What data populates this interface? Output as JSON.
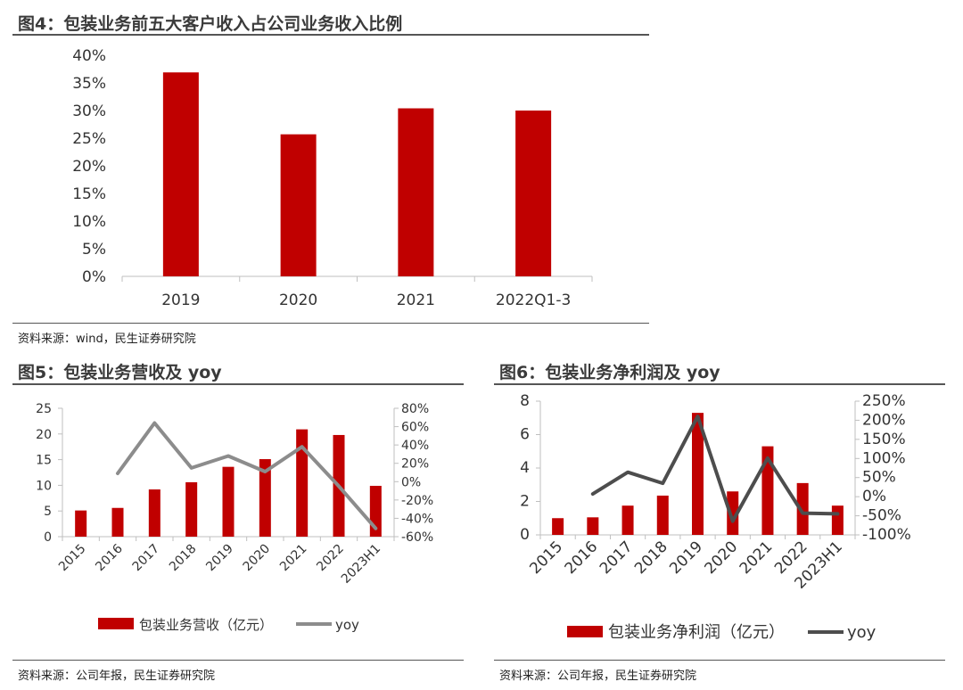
{
  "charts": [
    {
      "title": "图4：包装业务前五大客户收入占公司业务收入比例",
      "source": "资料来源：wind，民生证券研究院"
    },
    {
      "title": "图5：包装业务营收及 yoy",
      "source": "资料来源：公司年报，民生证券研究院",
      "legend_bar": "包装业务营收（亿元）",
      "legend_line": "yoy"
    },
    {
      "title": "图6：包装业务净利润及 yoy",
      "source": "资料来源：公司年报，民生证券研究院",
      "legend_bar": "包装业务净利润（亿元）",
      "legend_line": "yoy"
    }
  ],
  "colors": {
    "bar": "#c00000",
    "line5": "#8c8c8c",
    "line6": "#4d4d4d",
    "axis": "#bfbfbf"
  },
  "chart_data": [
    {
      "type": "bar",
      "categories": [
        "2019",
        "2020",
        "2021",
        "2022Q1-3"
      ],
      "values": [
        0.369,
        0.257,
        0.304,
        0.3
      ],
      "y_ticks": [
        "0%",
        "5%",
        "10%",
        "15%",
        "20%",
        "25%",
        "30%",
        "35%",
        "40%"
      ],
      "ylim": [
        0,
        0.4
      ],
      "grid": false,
      "legend": "none"
    },
    {
      "type": "bar+line",
      "categories": [
        "2015",
        "2016",
        "2017",
        "2018",
        "2019",
        "2020",
        "2021",
        "2022",
        "2023H1"
      ],
      "bar_values": [
        5.1,
        5.6,
        9.2,
        10.6,
        13.6,
        15.1,
        20.9,
        19.8,
        9.9
      ],
      "line_values": [
        null,
        0.09,
        0.64,
        0.15,
        0.28,
        0.11,
        0.38,
        -0.05,
        -0.51
      ],
      "y_left_ticks": [
        "0",
        "5",
        "10",
        "15",
        "20",
        "25"
      ],
      "ylim_left": [
        0,
        25
      ],
      "y_right_ticks": [
        "-60%",
        "-40%",
        "-20%",
        "0%",
        "20%",
        "40%",
        "60%",
        "80%"
      ],
      "ylim_right": [
        -0.6,
        0.8
      ],
      "grid": false,
      "legend": "bottom"
    },
    {
      "type": "bar+line",
      "categories": [
        "2015",
        "2016",
        "2017",
        "2018",
        "2019",
        "2020",
        "2021",
        "2022",
        "2023H1"
      ],
      "bar_values": [
        1.0,
        1.05,
        1.75,
        2.35,
        7.3,
        2.6,
        5.3,
        3.1,
        1.75
      ],
      "line_values": [
        null,
        0.07,
        0.64,
        0.35,
        2.1,
        -0.64,
        1.01,
        -0.43,
        -0.45
      ],
      "y_left_ticks": [
        "0",
        "2",
        "4",
        "6",
        "8"
      ],
      "ylim_left": [
        0,
        8
      ],
      "y_right_ticks": [
        "-100%",
        "-50%",
        "0%",
        "50%",
        "100%",
        "150%",
        "200%",
        "250%"
      ],
      "ylim_right": [
        -1.0,
        2.5
      ],
      "grid": false,
      "legend": "bottom"
    }
  ]
}
